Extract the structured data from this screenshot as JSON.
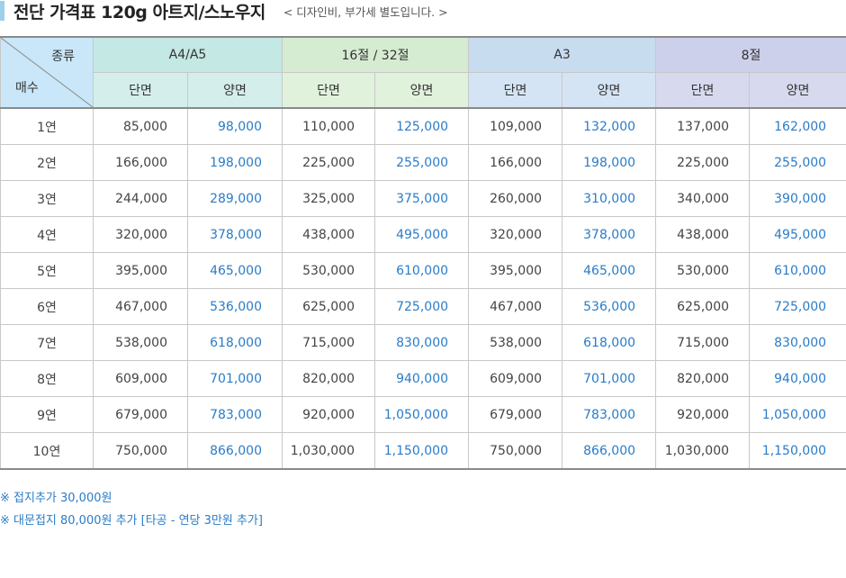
{
  "header": {
    "title": "전단 가격표 120g 아트지/스노우지",
    "note": "< 디자인비, 부가세 별도입니다. >"
  },
  "table": {
    "corner_top": "종류",
    "corner_bottom": "매수",
    "groups": [
      "A4/A5",
      "16절 / 32절",
      "A3",
      "8절"
    ],
    "sub": [
      "단면",
      "양면"
    ],
    "rows": [
      {
        "label": "1연",
        "values": [
          "85,000",
          "98,000",
          "110,000",
          "125,000",
          "109,000",
          "132,000",
          "137,000",
          "162,000"
        ]
      },
      {
        "label": "2연",
        "values": [
          "166,000",
          "198,000",
          "225,000",
          "255,000",
          "166,000",
          "198,000",
          "225,000",
          "255,000"
        ]
      },
      {
        "label": "3연",
        "values": [
          "244,000",
          "289,000",
          "325,000",
          "375,000",
          "260,000",
          "310,000",
          "340,000",
          "390,000"
        ]
      },
      {
        "label": "4연",
        "values": [
          "320,000",
          "378,000",
          "438,000",
          "495,000",
          "320,000",
          "378,000",
          "438,000",
          "495,000"
        ]
      },
      {
        "label": "5연",
        "values": [
          "395,000",
          "465,000",
          "530,000",
          "610,000",
          "395,000",
          "465,000",
          "530,000",
          "610,000"
        ]
      },
      {
        "label": "6연",
        "values": [
          "467,000",
          "536,000",
          "625,000",
          "725,000",
          "467,000",
          "536,000",
          "625,000",
          "725,000"
        ]
      },
      {
        "label": "7연",
        "values": [
          "538,000",
          "618,000",
          "715,000",
          "830,000",
          "538,000",
          "618,000",
          "715,000",
          "830,000"
        ]
      },
      {
        "label": "8연",
        "values": [
          "609,000",
          "701,000",
          "820,000",
          "940,000",
          "609,000",
          "701,000",
          "820,000",
          "940,000"
        ]
      },
      {
        "label": "9연",
        "values": [
          "679,000",
          "783,000",
          "920,000",
          "1,050,000",
          "679,000",
          "783,000",
          "920,000",
          "1,050,000"
        ]
      },
      {
        "label": "10연",
        "values": [
          "750,000",
          "866,000",
          "1,030,000",
          "1,150,000",
          "750,000",
          "866,000",
          "1,030,000",
          "1,150,000"
        ]
      }
    ]
  },
  "footnotes": [
    "※ 접지추가 30,000원",
    "※ 대문접지 80,000원 추가 [타공 - 연당 3만원 추가]"
  ],
  "colors": {
    "accent_bar": "#9dd0ea",
    "double_side_text": "#2a7cc7",
    "group_a4": "#c4e8e4",
    "group_16": "#d6ecd2",
    "group_a3": "#c8dcf0",
    "group_8": "#cdd0ea"
  }
}
